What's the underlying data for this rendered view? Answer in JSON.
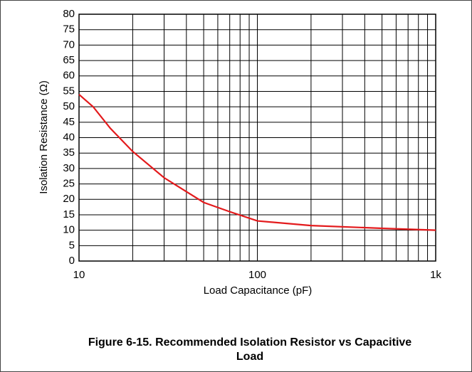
{
  "chart_data": {
    "type": "line",
    "title": "Figure 6-15. Recommended Isolation Resistor vs Capacitive Load",
    "xlabel": "Load Capacitance (pF)",
    "ylabel": "Isolation Resistance (Ω)",
    "x": [
      10,
      12,
      15,
      20,
      30,
      40,
      50,
      70,
      100,
      200,
      500,
      1000
    ],
    "series": [
      {
        "name": "Isolation Resistance",
        "color": "#e31a1c",
        "values": [
          54,
          50,
          43,
          35.5,
          27,
          22.5,
          19,
          16,
          13,
          11.5,
          10.6,
          10
        ]
      }
    ],
    "xlog": true,
    "xlim": [
      10,
      1000
    ],
    "xticks": [
      10,
      100,
      {
        "value": 1000,
        "label": "1k"
      }
    ],
    "xgrid": [
      20,
      30,
      40,
      50,
      60,
      70,
      80,
      90,
      200,
      300,
      400,
      500,
      600,
      700,
      800,
      900
    ],
    "ylim": [
      0,
      80
    ],
    "yticks": [
      0,
      5,
      10,
      15,
      20,
      25,
      30,
      35,
      40,
      45,
      50,
      55,
      60,
      65,
      70,
      75,
      80
    ],
    "grid": true
  }
}
